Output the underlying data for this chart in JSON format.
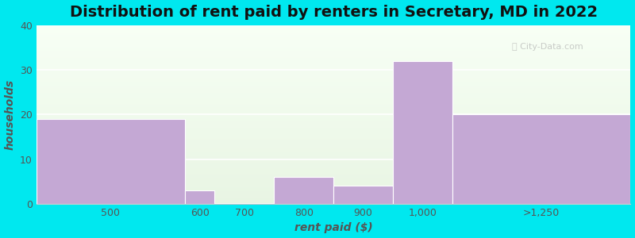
{
  "title": "Distribution of rent paid by renters in Secretary, MD in 2022",
  "xlabel": "rent paid ($)",
  "ylabel": "households",
  "bin_labels": [
    "500",
    "600",
    "700",
    "800",
    "900",
    "1,000",
    ">1,250"
  ],
  "bin_edges": [
    300,
    550,
    600,
    700,
    800,
    900,
    1000,
    1300
  ],
  "values": [
    19,
    3,
    0,
    6,
    4,
    32,
    20
  ],
  "bar_color": "#c4a8d4",
  "bar_edgecolor": "#ffffff",
  "ylim": [
    0,
    40
  ],
  "yticks": [
    0,
    10,
    20,
    30,
    40
  ],
  "background_outer": "#00e8ef",
  "plot_bg_color_top": "#eaf5e4",
  "plot_bg_color_bottom": "#f8fff5",
  "grid_color": "#ffffff",
  "title_fontsize": 14,
  "axis_label_fontsize": 10,
  "tick_fontsize": 9,
  "tick_label_color": "#555555",
  "title_color": "#111111",
  "label_color": "#555555"
}
